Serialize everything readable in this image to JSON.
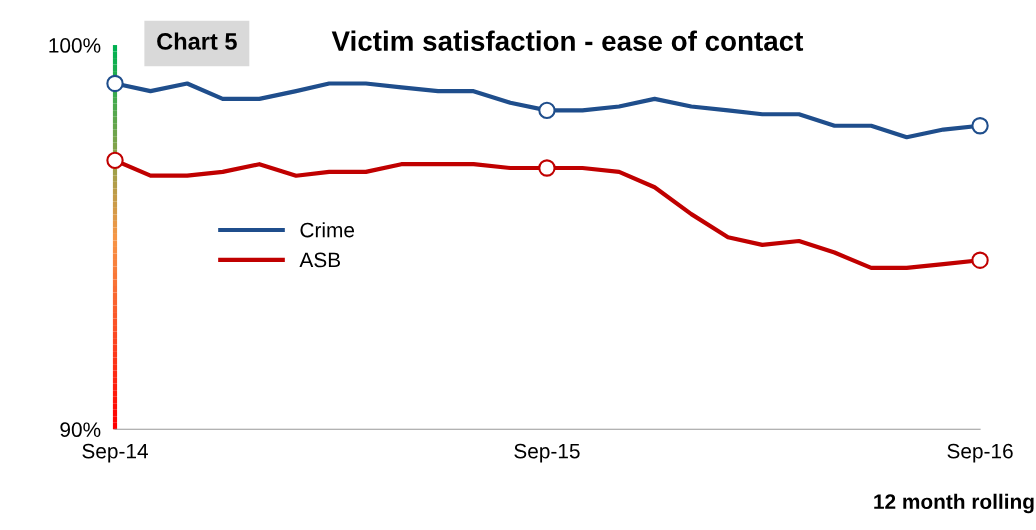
{
  "chart_data": {
    "type": "line",
    "title": "Victim satisfaction - ease of contact",
    "annotations": [
      "Chart 5"
    ],
    "xlabel": "12 month rolling",
    "x": [
      "2014-09",
      "2014-10",
      "2014-11",
      "2014-12",
      "2015-01",
      "2015-02",
      "2015-03",
      "2015-04",
      "2015-05",
      "2015-06",
      "2015-07",
      "2015-08",
      "2015-09",
      "2015-10",
      "2015-11",
      "2015-12",
      "2016-01",
      "2016-02",
      "2016-03",
      "2016-04",
      "2016-05",
      "2016-06",
      "2016-07",
      "2016-08",
      "2016-09"
    ],
    "series": [
      {
        "name": "Crime",
        "color": "#1f4e8c",
        "values": [
          99.0,
          98.8,
          99.0,
          98.6,
          98.6,
          98.8,
          99.0,
          99.0,
          98.9,
          98.8,
          98.8,
          98.5,
          98.3,
          98.3,
          98.4,
          98.6,
          98.4,
          98.3,
          98.2,
          98.2,
          97.9,
          97.9,
          97.6,
          97.8,
          97.9
        ]
      },
      {
        "name": "ASB",
        "color": "#c00000",
        "values": [
          97.0,
          96.6,
          96.6,
          96.7,
          96.9,
          96.6,
          96.7,
          96.7,
          96.9,
          96.9,
          96.9,
          96.8,
          96.8,
          96.8,
          96.7,
          96.3,
          95.6,
          95.0,
          94.8,
          94.9,
          94.6,
          94.2,
          94.2,
          94.3,
          94.4
        ]
      }
    ],
    "xlim": [
      "2014-09",
      "2016-09"
    ],
    "xticks": [
      {
        "value": "2014-09",
        "label": "Sep-14"
      },
      {
        "value": "2015-09",
        "label": "Sep-15"
      },
      {
        "value": "2016-09",
        "label": "Sep-16"
      }
    ],
    "ylim": [
      90,
      100
    ],
    "yticks": [
      {
        "value": 90,
        "label": "90%"
      },
      {
        "value": 100,
        "label": "100%"
      }
    ],
    "grid": false,
    "legend": "center left",
    "line_style": "solid"
  }
}
